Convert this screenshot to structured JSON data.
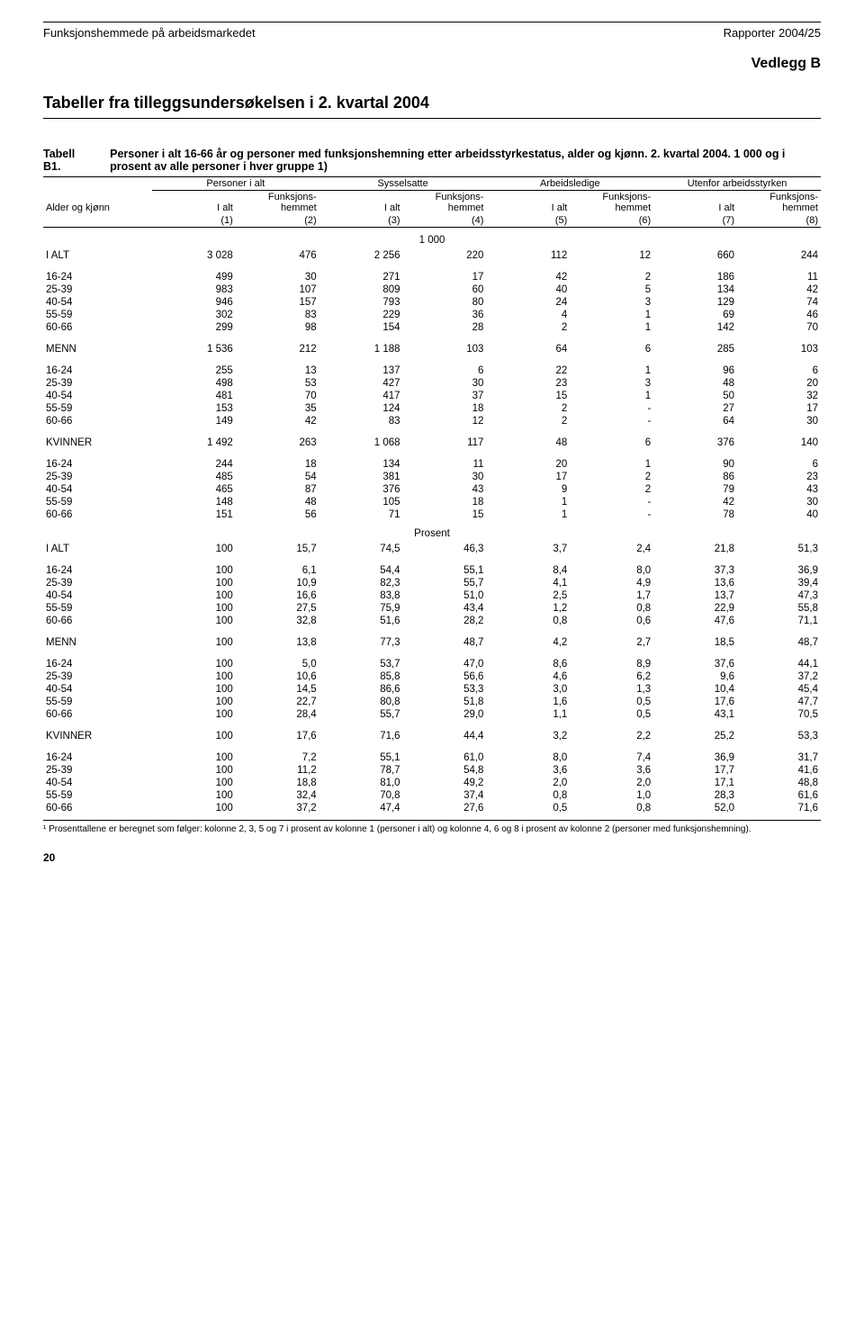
{
  "header": {
    "left": "Funksjonshemmede på arbeidsmarkedet",
    "right": "Rapporter 2004/25"
  },
  "title": "Tabeller fra tilleggsundersøkelsen i 2. kvartal 2004",
  "vedlegg": "Vedlegg B",
  "tabell_label": "Tabell B1.",
  "tabell_desc": "Personer i alt 16-66 år og personer med funksjonshemning etter arbeidsstyrkestatus, alder og kjønn. 2. kvartal 2004. 1 000 og i prosent av alle personer i hver gruppe 1)",
  "colgroups": [
    "Personer i alt",
    "Sysselsatte",
    "Arbeidsledige",
    "Utenfor arbeidsstyrken"
  ],
  "row_header": "Alder og kjønn",
  "sub1": "I alt",
  "sub2": "Funksjons-\nhemmet",
  "colnums": [
    "(1)",
    "(2)",
    "(3)",
    "(4)",
    "(5)",
    "(6)",
    "(7)",
    "(8)"
  ],
  "divider1": "1 000",
  "divider2": "Prosent",
  "rows_abs": [
    {
      "section": "I ALT",
      "v": [
        "3 028",
        "476",
        "2 256",
        "220",
        "112",
        "12",
        "660",
        "244"
      ]
    },
    {
      "gap": true
    },
    {
      "section": "16-24",
      "v": [
        "499",
        "30",
        "271",
        "17",
        "42",
        "2",
        "186",
        "11"
      ]
    },
    {
      "section": "25-39",
      "v": [
        "983",
        "107",
        "809",
        "60",
        "40",
        "5",
        "134",
        "42"
      ]
    },
    {
      "section": "40-54",
      "v": [
        "946",
        "157",
        "793",
        "80",
        "24",
        "3",
        "129",
        "74"
      ]
    },
    {
      "section": "55-59",
      "v": [
        "302",
        "83",
        "229",
        "36",
        "4",
        "1",
        "69",
        "46"
      ]
    },
    {
      "section": "60-66",
      "v": [
        "299",
        "98",
        "154",
        "28",
        "2",
        "1",
        "142",
        "70"
      ]
    },
    {
      "gap": true
    },
    {
      "section": "MENN",
      "v": [
        "1 536",
        "212",
        "1 188",
        "103",
        "64",
        "6",
        "285",
        "103"
      ]
    },
    {
      "gap": true
    },
    {
      "section": "16-24",
      "v": [
        "255",
        "13",
        "137",
        "6",
        "22",
        "1",
        "96",
        "6"
      ]
    },
    {
      "section": "25-39",
      "v": [
        "498",
        "53",
        "427",
        "30",
        "23",
        "3",
        "48",
        "20"
      ]
    },
    {
      "section": "40-54",
      "v": [
        "481",
        "70",
        "417",
        "37",
        "15",
        "1",
        "50",
        "32"
      ]
    },
    {
      "section": "55-59",
      "v": [
        "153",
        "35",
        "124",
        "18",
        "2",
        "-",
        "27",
        "17"
      ]
    },
    {
      "section": "60-66",
      "v": [
        "149",
        "42",
        "83",
        "12",
        "2",
        "-",
        "64",
        "30"
      ]
    },
    {
      "gap": true
    },
    {
      "section": "KVINNER",
      "v": [
        "1 492",
        "263",
        "1 068",
        "117",
        "48",
        "6",
        "376",
        "140"
      ]
    },
    {
      "gap": true
    },
    {
      "section": "16-24",
      "v": [
        "244",
        "18",
        "134",
        "11",
        "20",
        "1",
        "90",
        "6"
      ]
    },
    {
      "section": "25-39",
      "v": [
        "485",
        "54",
        "381",
        "30",
        "17",
        "2",
        "86",
        "23"
      ]
    },
    {
      "section": "40-54",
      "v": [
        "465",
        "87",
        "376",
        "43",
        "9",
        "2",
        "79",
        "43"
      ]
    },
    {
      "section": "55-59",
      "v": [
        "148",
        "48",
        "105",
        "18",
        "1",
        "-",
        "42",
        "30"
      ]
    },
    {
      "section": "60-66",
      "v": [
        "151",
        "56",
        "71",
        "15",
        "1",
        "-",
        "78",
        "40"
      ]
    }
  ],
  "rows_pct": [
    {
      "section": "I ALT",
      "v": [
        "100",
        "15,7",
        "74,5",
        "46,3",
        "3,7",
        "2,4",
        "21,8",
        "51,3"
      ]
    },
    {
      "gap": true
    },
    {
      "section": "16-24",
      "v": [
        "100",
        "6,1",
        "54,4",
        "55,1",
        "8,4",
        "8,0",
        "37,3",
        "36,9"
      ]
    },
    {
      "section": "25-39",
      "v": [
        "100",
        "10,9",
        "82,3",
        "55,7",
        "4,1",
        "4,9",
        "13,6",
        "39,4"
      ]
    },
    {
      "section": "40-54",
      "v": [
        "100",
        "16,6",
        "83,8",
        "51,0",
        "2,5",
        "1,7",
        "13,7",
        "47,3"
      ]
    },
    {
      "section": "55-59",
      "v": [
        "100",
        "27,5",
        "75,9",
        "43,4",
        "1,2",
        "0,8",
        "22,9",
        "55,8"
      ]
    },
    {
      "section": "60-66",
      "v": [
        "100",
        "32,8",
        "51,6",
        "28,2",
        "0,8",
        "0,6",
        "47,6",
        "71,1"
      ]
    },
    {
      "gap": true
    },
    {
      "section": "MENN",
      "v": [
        "100",
        "13,8",
        "77,3",
        "48,7",
        "4,2",
        "2,7",
        "18,5",
        "48,7"
      ]
    },
    {
      "gap": true
    },
    {
      "section": "16-24",
      "v": [
        "100",
        "5,0",
        "53,7",
        "47,0",
        "8,6",
        "8,9",
        "37,6",
        "44,1"
      ]
    },
    {
      "section": "25-39",
      "v": [
        "100",
        "10,6",
        "85,8",
        "56,6",
        "4,6",
        "6,2",
        "9,6",
        "37,2"
      ]
    },
    {
      "section": "40-54",
      "v": [
        "100",
        "14,5",
        "86,6",
        "53,3",
        "3,0",
        "1,3",
        "10,4",
        "45,4"
      ]
    },
    {
      "section": "55-59",
      "v": [
        "100",
        "22,7",
        "80,8",
        "51,8",
        "1,6",
        "0,5",
        "17,6",
        "47,7"
      ]
    },
    {
      "section": "60-66",
      "v": [
        "100",
        "28,4",
        "55,7",
        "29,0",
        "1,1",
        "0,5",
        "43,1",
        "70,5"
      ]
    },
    {
      "gap": true
    },
    {
      "section": "KVINNER",
      "v": [
        "100",
        "17,6",
        "71,6",
        "44,4",
        "3,2",
        "2,2",
        "25,2",
        "53,3"
      ]
    },
    {
      "gap": true
    },
    {
      "section": "16-24",
      "v": [
        "100",
        "7,2",
        "55,1",
        "61,0",
        "8,0",
        "7,4",
        "36,9",
        "31,7"
      ]
    },
    {
      "section": "25-39",
      "v": [
        "100",
        "11,2",
        "78,7",
        "54,8",
        "3,6",
        "3,6",
        "17,7",
        "41,6"
      ]
    },
    {
      "section": "40-54",
      "v": [
        "100",
        "18,8",
        "81,0",
        "49,2",
        "2,0",
        "2,0",
        "17,1",
        "48,8"
      ]
    },
    {
      "section": "55-59",
      "v": [
        "100",
        "32,4",
        "70,8",
        "37,4",
        "0,8",
        "1,0",
        "28,3",
        "61,6"
      ]
    },
    {
      "section": "60-66",
      "v": [
        "100",
        "37,2",
        "47,4",
        "27,6",
        "0,5",
        "0,8",
        "52,0",
        "71,6"
      ]
    }
  ],
  "footnote": "¹ Prosenttallene er beregnet som følger: kolonne 2, 3, 5 og 7 i prosent av kolonne 1 (personer i alt) og kolonne 4, 6 og 8 i prosent av kolonne 2 (personer med funksjonshemning).",
  "page_number": "20",
  "style": {
    "text_color": "#000000",
    "background": "#ffffff",
    "rule_color": "#000000",
    "title_fontsize_pt": 14,
    "vedlegg_fontsize_pt": 12,
    "body_fontsize_pt": 9,
    "footnote_fontsize_pt": 7.5,
    "column_widths_pct": [
      14,
      10.75,
      10.75,
      10.75,
      10.75,
      10.75,
      10.75,
      10.75,
      10.75
    ]
  }
}
